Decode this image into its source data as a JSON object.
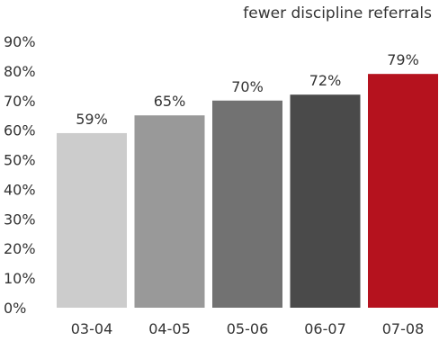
{
  "chart_data": {
    "type": "bar",
    "title": "fewer discipline referrals",
    "xlabel": "",
    "ylabel": "",
    "categories": [
      "03-04",
      "04-05",
      "05-06",
      "06-07",
      "07-08"
    ],
    "values": [
      59,
      65,
      70,
      72,
      79
    ],
    "value_labels": [
      "59%",
      "65%",
      "70%",
      "72%",
      "79%"
    ],
    "ylim": [
      0,
      90
    ],
    "y_ticks": [
      0,
      10,
      20,
      30,
      40,
      50,
      60,
      70,
      80,
      90
    ],
    "y_tick_labels": [
      "0%",
      "10%",
      "20%",
      "30%",
      "40%",
      "50%",
      "60%",
      "70%",
      "80%",
      "90%"
    ],
    "grid": false,
    "legend": "none",
    "bar_colors": [
      "#cccccc",
      "#999999",
      "#727272",
      "#4a4a4a",
      "#b5121e"
    ]
  }
}
